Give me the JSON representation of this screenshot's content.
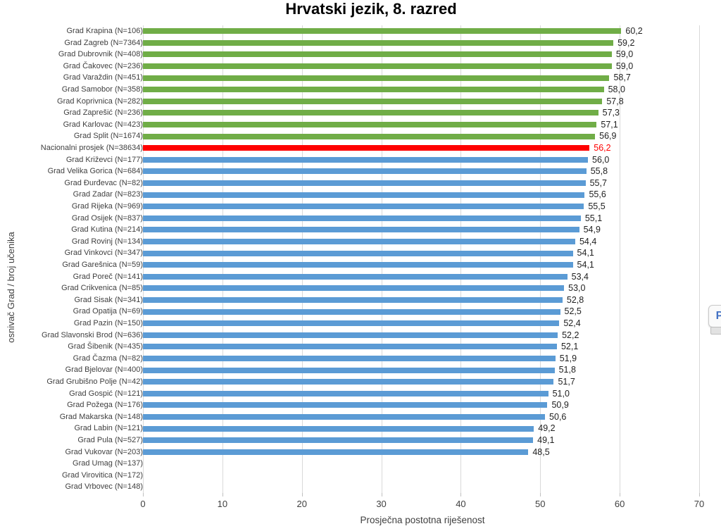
{
  "chart_data": {
    "type": "bar",
    "orientation": "horizontal",
    "title": "Hrvatski jezik, 8. razred",
    "xlabel": "Prosječna postotna riješenost",
    "ylabel": "osnivač Grad / broj učenika",
    "xlim": [
      0,
      70
    ],
    "xticks": [
      0,
      10,
      20,
      30,
      40,
      50,
      60,
      70
    ],
    "grid": "vertical",
    "palette": {
      "above_average": "#70AD47",
      "national_average": "#FF0000",
      "below_average": "#5B9BD5",
      "gridline": "#D9D9D9"
    },
    "rows": [
      {
        "label": "Grad Krapina (N=106)",
        "value": 60.2,
        "display": "60,2",
        "group": "above"
      },
      {
        "label": "Grad Zagreb (N=7364)",
        "value": 59.2,
        "display": "59,2",
        "group": "above"
      },
      {
        "label": "Grad Dubrovnik (N=408)",
        "value": 59.0,
        "display": "59,0",
        "group": "above"
      },
      {
        "label": "Grad Čakovec (N=236)",
        "value": 59.0,
        "display": "59,0",
        "group": "above"
      },
      {
        "label": "Grad Varaždin (N=451)",
        "value": 58.7,
        "display": "58,7",
        "group": "above"
      },
      {
        "label": "Grad Samobor (N=358)",
        "value": 58.0,
        "display": "58,0",
        "group": "above"
      },
      {
        "label": "Grad Koprivnica (N=282)",
        "value": 57.8,
        "display": "57,8",
        "group": "above"
      },
      {
        "label": "Grad Zaprešić (N=236)",
        "value": 57.3,
        "display": "57,3",
        "group": "above"
      },
      {
        "label": "Grad Karlovac (N=423)",
        "value": 57.1,
        "display": "57,1",
        "group": "above"
      },
      {
        "label": "Grad Split (N=1674)",
        "value": 56.9,
        "display": "56,9",
        "group": "above"
      },
      {
        "label": "Nacionalni prosjek (N=38634)",
        "value": 56.2,
        "display": "56,2",
        "group": "national"
      },
      {
        "label": "Grad Križevci (N=177)",
        "value": 56.0,
        "display": "56,0",
        "group": "below"
      },
      {
        "label": "Grad Velika Gorica (N=684)",
        "value": 55.8,
        "display": "55,8",
        "group": "below"
      },
      {
        "label": "Grad Đurđevac (N=82)",
        "value": 55.7,
        "display": "55,7",
        "group": "below"
      },
      {
        "label": "Grad Zadar (N=823)",
        "value": 55.6,
        "display": "55,6",
        "group": "below"
      },
      {
        "label": "Grad Rijeka (N=969)",
        "value": 55.5,
        "display": "55,5",
        "group": "below"
      },
      {
        "label": "Grad Osijek (N=837)",
        "value": 55.1,
        "display": "55,1",
        "group": "below"
      },
      {
        "label": "Grad Kutina (N=214)",
        "value": 54.9,
        "display": "54,9",
        "group": "below"
      },
      {
        "label": "Grad Rovinj (N=134)",
        "value": 54.4,
        "display": "54,4",
        "group": "below"
      },
      {
        "label": "Grad Vinkovci (N=347)",
        "value": 54.1,
        "display": "54,1",
        "group": "below"
      },
      {
        "label": "Grad Garešnica (N=59)",
        "value": 54.1,
        "display": "54,1",
        "group": "below"
      },
      {
        "label": "Grad Poreč (N=141)",
        "value": 53.4,
        "display": "53,4",
        "group": "below"
      },
      {
        "label": "Grad Crikvenica (N=85)",
        "value": 53.0,
        "display": "53,0",
        "group": "below"
      },
      {
        "label": "Grad Sisak (N=341)",
        "value": 52.8,
        "display": "52,8",
        "group": "below"
      },
      {
        "label": "Grad Opatija (N=69)",
        "value": 52.5,
        "display": "52,5",
        "group": "below"
      },
      {
        "label": "Grad Pazin (N=150)",
        "value": 52.4,
        "display": "52,4",
        "group": "below"
      },
      {
        "label": "Grad Slavonski Brod (N=636)",
        "value": 52.2,
        "display": "52,2",
        "group": "below"
      },
      {
        "label": "Grad Šibenik (N=435)",
        "value": 52.1,
        "display": "52,1",
        "group": "below"
      },
      {
        "label": "Grad Čazma (N=82)",
        "value": 51.9,
        "display": "51,9",
        "group": "below"
      },
      {
        "label": "Grad Bjelovar (N=400)",
        "value": 51.8,
        "display": "51,8",
        "group": "below"
      },
      {
        "label": "Grad Grubišno Polje (N=42)",
        "value": 51.7,
        "display": "51,7",
        "group": "below"
      },
      {
        "label": "Grad Gospić (N=121)",
        "value": 51.0,
        "display": "51,0",
        "group": "below"
      },
      {
        "label": "Grad Požega (N=176)",
        "value": 50.9,
        "display": "50,9",
        "group": "below"
      },
      {
        "label": "Grad Makarska (N=148)",
        "value": 50.6,
        "display": "50,6",
        "group": "below"
      },
      {
        "label": "Grad Labin (N=121)",
        "value": 49.2,
        "display": "49,2",
        "group": "below"
      },
      {
        "label": "Grad Pula (N=527)",
        "value": 49.1,
        "display": "49,1",
        "group": "below"
      },
      {
        "label": "Grad Vukovar (N=203)",
        "value": 48.5,
        "display": "48,5",
        "group": "below"
      },
      {
        "label": "Grad Umag (N=137)",
        "value": null,
        "display": "",
        "group": "none"
      },
      {
        "label": "Grad Virovitica (N=172)",
        "value": null,
        "display": "",
        "group": "none"
      },
      {
        "label": "Grad Vrbovec (N=148)",
        "value": null,
        "display": "",
        "group": "none"
      }
    ]
  },
  "side_button": {
    "label": "P"
  }
}
